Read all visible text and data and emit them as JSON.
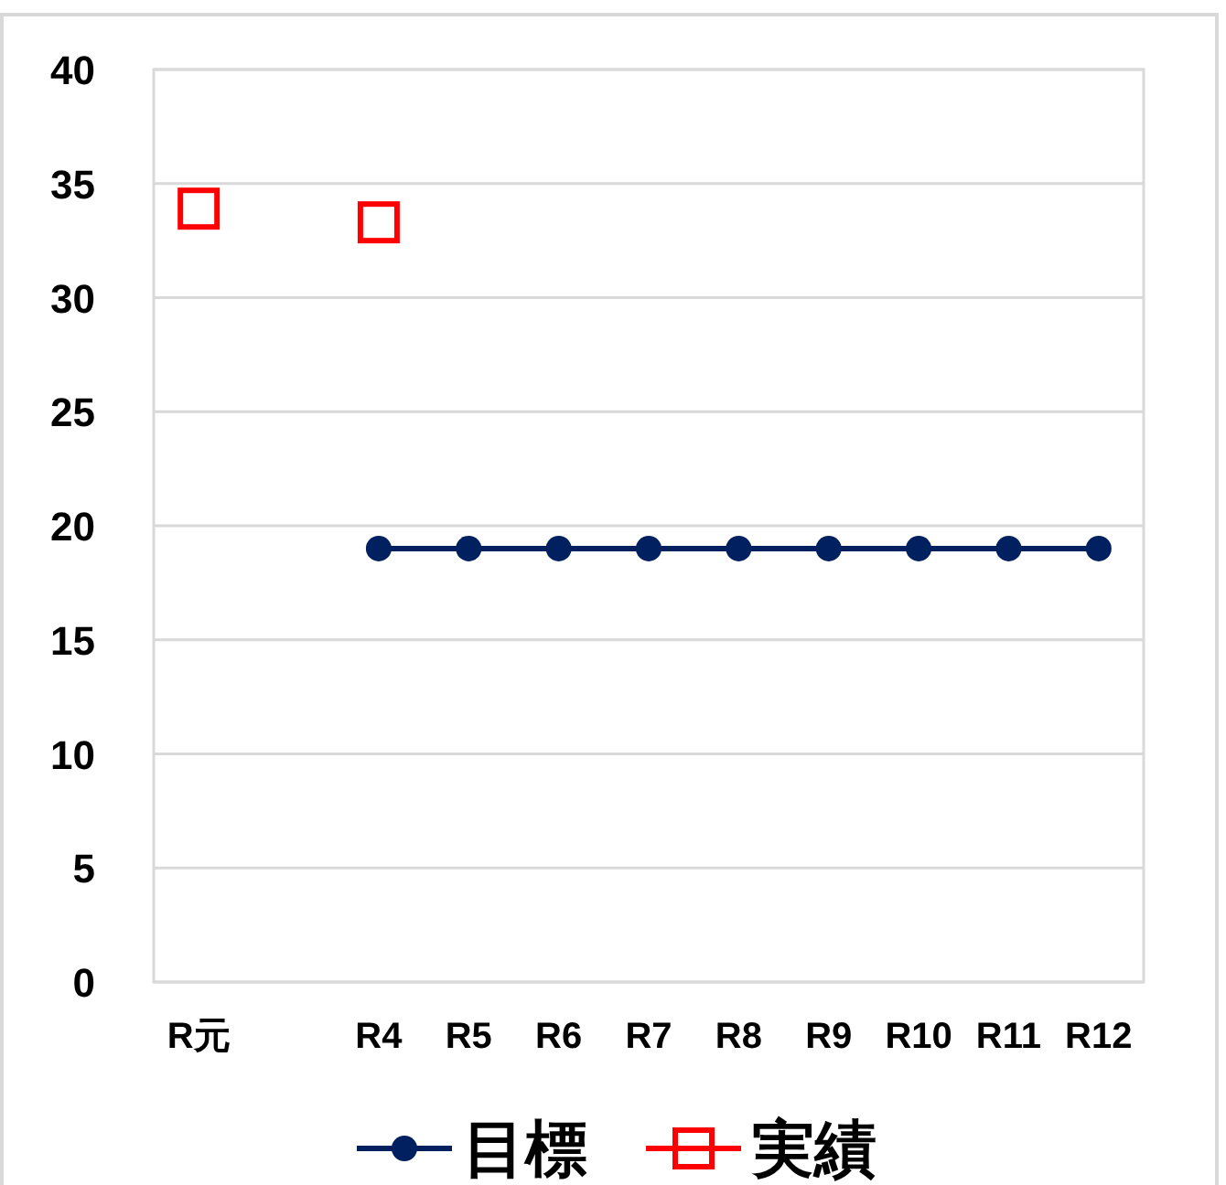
{
  "chart_data": {
    "type": "line",
    "categories": [
      "R元",
      null,
      "R4",
      "R5",
      "R6",
      "R7",
      "R8",
      "R9",
      "R10",
      "R11",
      "R12"
    ],
    "series": [
      {
        "name": "目標",
        "color": "#002060",
        "marker": "circle",
        "values": [
          null,
          null,
          19,
          19,
          19,
          19,
          19,
          19,
          19,
          19,
          19
        ]
      },
      {
        "name": "実績",
        "color": "#ff0000",
        "marker": "square",
        "type": "scatter",
        "values": [
          33.9,
          null,
          33.3,
          null,
          null,
          null,
          null,
          null,
          null,
          null,
          null
        ]
      }
    ],
    "ylim": [
      0,
      40
    ],
    "yticks": [
      0,
      5,
      10,
      15,
      20,
      25,
      30,
      35,
      40
    ],
    "grid": "y",
    "legend": "bottom"
  }
}
